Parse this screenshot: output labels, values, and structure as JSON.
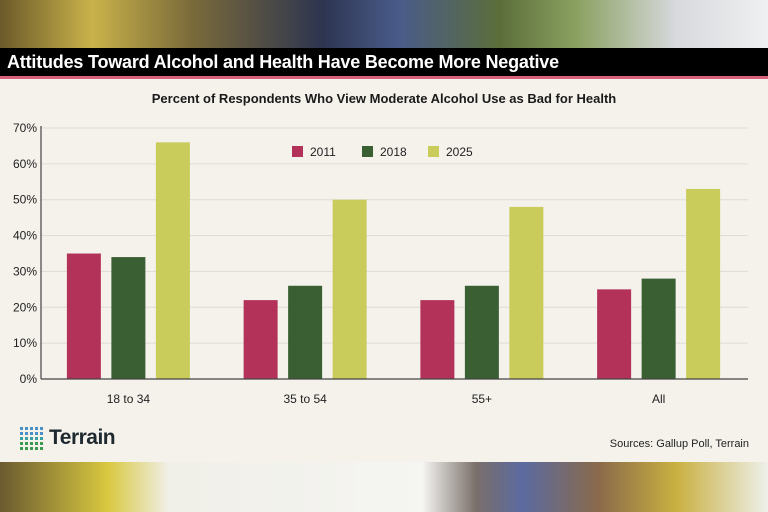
{
  "header": {
    "title": "Attitudes Toward Alcohol and Health Have Become More Negative"
  },
  "footer": {
    "logo": "Terrain",
    "sources": "Sources: Gallup Poll, Terrain"
  },
  "chart_data": {
    "type": "bar",
    "title": "Percent of Respondents Who View Moderate Alcohol Use as Bad for Health",
    "xlabel": "",
    "ylabel": "",
    "categories": [
      "18 to 34",
      "35 to 54",
      "55+",
      "All"
    ],
    "series": [
      {
        "name": "2011",
        "color": "#b3325a",
        "values": [
          35,
          22,
          22,
          25
        ]
      },
      {
        "name": "2018",
        "color": "#3a5f33",
        "values": [
          34,
          26,
          26,
          28
        ]
      },
      {
        "name": "2025",
        "color": "#c9cb5a",
        "values": [
          66,
          50,
          48,
          53
        ]
      }
    ],
    "ylim": [
      0,
      70
    ],
    "yticks": [
      "0%",
      "10%",
      "20%",
      "30%",
      "40%",
      "50%",
      "60%",
      "70%"
    ],
    "grid": true,
    "legend": "top-center"
  }
}
